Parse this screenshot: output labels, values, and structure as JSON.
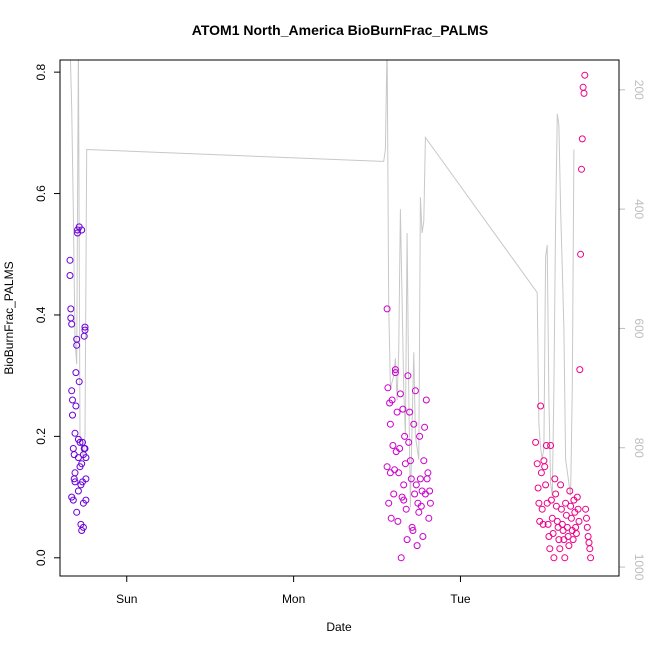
{
  "chart_data": {
    "type": "scatter",
    "title": "ATOM1 North_America BioBurnFrac_PALMS",
    "xlabel": "Date",
    "ylabel": "BioBurnFrac_PALMS",
    "xlim": [
      -0.4,
      2.95
    ],
    "ylim": [
      -0.03,
      0.82
    ],
    "x_ticks": [
      {
        "value": 0,
        "label": "Sun"
      },
      {
        "value": 1,
        "label": "Mon"
      },
      {
        "value": 2,
        "label": "Tue"
      }
    ],
    "y_ticks": [
      0.0,
      0.2,
      0.4,
      0.6,
      0.8
    ],
    "y2_ticks": [
      200,
      400,
      600,
      800,
      1000
    ],
    "y2lim": [
      1015,
      150
    ],
    "grid": false,
    "legend": "none",
    "colors": {
      "line": "#c8c8c8",
      "frame": "#000000",
      "right_axis": "#bdbdbd"
    },
    "series": [
      {
        "type": "scatter",
        "color": "#6a00d8",
        "x": [
          -0.34,
          -0.34,
          -0.335,
          -0.335,
          -0.33,
          -0.33,
          -0.33,
          -0.325,
          -0.325,
          -0.32,
          -0.32,
          -0.315,
          -0.315,
          -0.31,
          -0.31,
          -0.31,
          -0.305,
          -0.305,
          -0.3,
          -0.3,
          -0.3,
          -0.295,
          -0.295,
          -0.29,
          -0.29,
          -0.29,
          -0.285,
          -0.285,
          -0.28,
          -0.28,
          -0.275,
          -0.275,
          -0.27,
          -0.27,
          -0.27,
          -0.265,
          -0.265,
          -0.26,
          -0.26,
          -0.26,
          -0.255,
          -0.255,
          -0.25,
          -0.25,
          -0.25,
          -0.245,
          -0.245,
          -0.245
        ],
        "y": [
          0.49,
          0.465,
          0.41,
          0.395,
          0.385,
          0.275,
          0.1,
          0.26,
          0.235,
          0.18,
          0.095,
          0.17,
          0.13,
          0.205,
          0.14,
          0.125,
          0.305,
          0.25,
          0.36,
          0.35,
          0.075,
          0.54,
          0.535,
          0.195,
          0.165,
          0.11,
          0.545,
          0.29,
          0.19,
          0.15,
          0.12,
          0.055,
          0.54,
          0.155,
          0.045,
          0.19,
          0.125,
          0.17,
          0.09,
          0.05,
          0.365,
          0.18,
          0.38,
          0.375,
          0.18,
          0.165,
          0.095,
          0.13
        ]
      },
      {
        "type": "scatter",
        "color": "#cc00cc",
        "x": [
          1.56,
          1.56,
          1.565,
          1.57,
          1.575,
          1.58,
          1.58,
          1.585,
          1.59,
          1.595,
          1.6,
          1.605,
          1.61,
          1.61,
          1.615,
          1.62,
          1.625,
          1.63,
          1.635,
          1.64,
          1.645,
          1.65,
          1.655,
          1.66,
          1.66,
          1.665,
          1.67,
          1.675,
          1.68,
          1.685,
          1.69,
          1.695,
          1.7,
          1.705,
          1.71,
          1.715,
          1.72,
          1.725,
          1.73,
          1.735,
          1.74,
          1.745,
          1.75,
          1.755,
          1.76,
          1.765,
          1.77,
          1.775,
          1.78,
          1.785,
          1.79,
          1.795,
          1.8,
          1.805,
          1.81,
          1.815,
          1.82
        ],
        "y": [
          0.41,
          0.15,
          0.28,
          0.09,
          0.255,
          0.22,
          0.14,
          0.065,
          0.26,
          0.185,
          0.105,
          0.145,
          0.31,
          0.305,
          0.175,
          0.24,
          0.06,
          0.14,
          0.18,
          0.27,
          0.0,
          0.1,
          0.245,
          0.12,
          0.095,
          0.2,
          0.155,
          0.08,
          0.03,
          0.3,
          0.19,
          0.24,
          0.16,
          0.13,
          0.05,
          0.045,
          0.22,
          0.105,
          0.275,
          0.12,
          0.02,
          0.09,
          0.075,
          0.2,
          0.13,
          0.085,
          0.11,
          0.035,
          0.16,
          0.215,
          0.105,
          0.26,
          0.13,
          0.14,
          0.065,
          0.11,
          0.09
        ]
      },
      {
        "type": "scatter",
        "color": "#ee0088",
        "x": [
          2.45,
          2.46,
          2.465,
          2.47,
          2.475,
          2.48,
          2.485,
          2.49,
          2.495,
          2.5,
          2.505,
          2.51,
          2.515,
          2.52,
          2.525,
          2.53,
          2.535,
          2.54,
          2.545,
          2.55,
          2.555,
          2.56,
          2.565,
          2.57,
          2.575,
          2.58,
          2.585,
          2.59,
          2.595,
          2.6,
          2.605,
          2.61,
          2.615,
          2.62,
          2.625,
          2.63,
          2.635,
          2.64,
          2.645,
          2.65,
          2.655,
          2.66,
          2.665,
          2.67,
          2.675,
          2.68,
          2.685,
          2.69,
          2.695,
          2.7,
          2.705,
          2.71,
          2.715,
          2.72,
          2.725,
          2.73,
          2.735,
          2.74,
          2.745,
          2.75,
          2.755,
          2.76,
          2.765,
          2.77,
          2.775,
          2.78
        ],
        "y": [
          0.19,
          0.155,
          0.115,
          0.09,
          0.06,
          0.25,
          0.14,
          0.08,
          0.055,
          0.16,
          0.15,
          0.12,
          0.185,
          0.09,
          0.055,
          0.035,
          0.015,
          0.185,
          0.095,
          0.065,
          0.04,
          0.0,
          0.13,
          0.105,
          0.085,
          0.06,
          0.05,
          0.03,
          0.015,
          0.12,
          0.08,
          0.055,
          0.045,
          0.03,
          0.0,
          0.09,
          0.07,
          0.05,
          0.035,
          0.02,
          0.11,
          0.085,
          0.065,
          0.045,
          0.03,
          0.095,
          0.075,
          0.05,
          0.04,
          0.1,
          0.08,
          0.06,
          0.31,
          0.5,
          0.64,
          0.69,
          0.775,
          0.765,
          0.795,
          0.08,
          0.065,
          0.05,
          0.035,
          0.025,
          0.015,
          0.0
        ]
      },
      {
        "type": "line",
        "axis": "right",
        "color": "#c8c8c8",
        "x": [
          -0.34,
          -0.33,
          -0.32,
          -0.31,
          -0.3,
          -0.29,
          -0.28,
          -0.27,
          -0.26,
          -0.25,
          -0.24,
          1.54,
          1.55,
          1.56,
          1.57,
          1.58,
          1.6,
          1.61,
          1.62,
          1.63,
          1.64,
          1.66,
          1.67,
          1.68,
          1.69,
          1.7,
          1.71,
          1.72,
          1.73,
          1.75,
          1.76,
          1.77,
          1.78,
          1.79,
          2.46,
          2.47,
          2.48,
          2.49,
          2.5,
          2.51,
          2.52,
          2.53,
          2.54,
          2.55,
          2.56,
          2.57,
          2.58,
          2.59,
          2.6,
          2.61,
          2.62,
          2.63,
          2.64,
          2.65,
          2.66,
          2.67,
          2.68
        ],
        "y": [
          120,
          230,
          400,
          620,
          660,
          120,
          790,
          800,
          820,
          780,
          300,
          320,
          300,
          120,
          560,
          700,
          680,
          650,
          720,
          640,
          400,
          700,
          780,
          440,
          700,
          900,
          760,
          640,
          780,
          820,
          380,
          440,
          420,
          280,
          540,
          760,
          800,
          820,
          800,
          480,
          460,
          720,
          860,
          880,
          700,
          420,
          240,
          260,
          400,
          500,
          600,
          820,
          840,
          860,
          880,
          700,
          300
        ]
      }
    ]
  }
}
